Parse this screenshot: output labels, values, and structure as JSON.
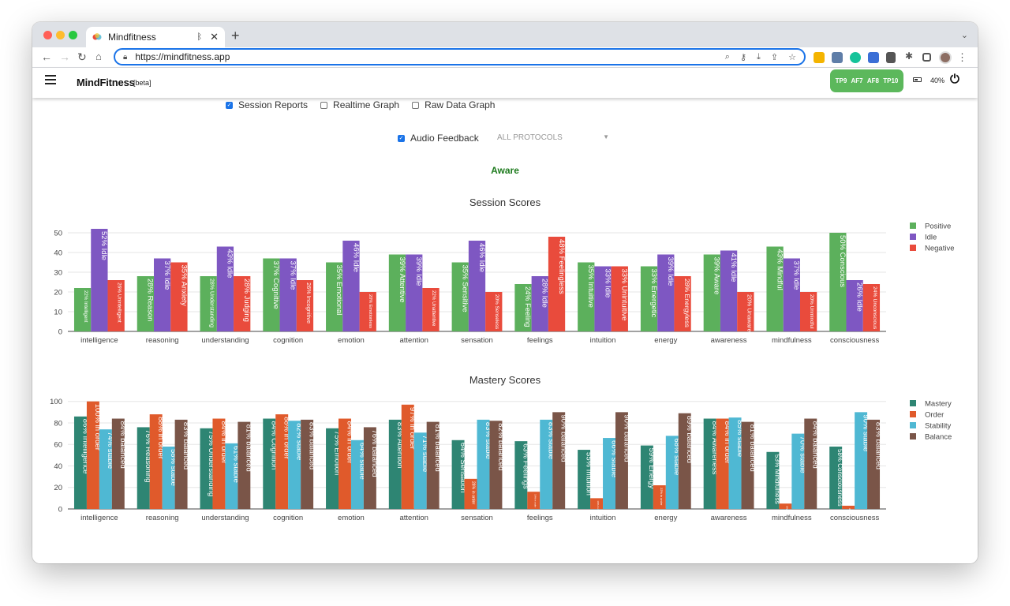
{
  "browser": {
    "tab_title": "Mindfitness",
    "url": "https://mindfitness.app"
  },
  "app": {
    "logo": "MindFitness",
    "beta": "[beta]",
    "sensors": [
      "TP9",
      "AF7",
      "AF8",
      "TP10"
    ],
    "sensor_status_color": "#5cb85c",
    "battery": "40%"
  },
  "controls": {
    "session_reports": {
      "label": "Session Reports",
      "checked": true
    },
    "realtime_graph": {
      "label": "Realtime Graph",
      "checked": false
    },
    "raw_data_graph": {
      "label": "Raw Data Graph",
      "checked": false
    },
    "audio_feedback": {
      "label": "Audio Feedback",
      "checked": true
    },
    "protocol_select": "ALL PROTOCOLS",
    "status": "Aware"
  },
  "chart_data": [
    {
      "type": "bar",
      "title": "Session Scores",
      "categories": [
        "intelligence",
        "reasoning",
        "understanding",
        "cognition",
        "emotion",
        "attention",
        "sensation",
        "feelings",
        "intuition",
        "energy",
        "awareness",
        "mindfulness",
        "consciousness"
      ],
      "ylim": [
        0,
        54
      ],
      "yticks": [
        0,
        10,
        20,
        30,
        40,
        50
      ],
      "grid": true,
      "legend_position": "right",
      "series": [
        {
          "name": "Positive",
          "color": "#5cb05c",
          "values": [
            22,
            28,
            28,
            37,
            35,
            39,
            35,
            24,
            35,
            33,
            39,
            43,
            50
          ],
          "labels": [
            "22% Intelligent",
            "28% Reason",
            "28% Understanding",
            "37% Cognitive",
            "35% Emotional",
            "39% Attentive",
            "35% Sensitive",
            "24% Feeling",
            "35% Intuitive",
            "33% Energetic",
            "39% Aware",
            "43% Mindful",
            "50% Conscious"
          ]
        },
        {
          "name": "Idle",
          "color": "#7e57c2",
          "values": [
            52,
            37,
            43,
            37,
            46,
            39,
            46,
            28,
            33,
            39,
            41,
            37,
            26
          ],
          "labels": [
            "52% Idle",
            "37% Idle",
            "43% Idle",
            "37% Idle",
            "46% Idle",
            "39% Idle",
            "46% Idle",
            "28% Idle",
            "33% Idle",
            "39% Idle",
            "41% Idle",
            "37% Idle",
            "26% Idle"
          ]
        },
        {
          "name": "Negative",
          "color": "#e94b3c",
          "values": [
            26,
            35,
            28,
            26,
            20,
            22,
            20,
            48,
            33,
            28,
            20,
            20,
            24
          ],
          "labels": [
            "26% Unintelligent",
            "35% Anxiety",
            "28% Judging",
            "26% Incognitive",
            "20% Emotionless",
            "22% Unattentive",
            "20% Senseless",
            "48% Feelingless",
            "33% Unintuitive",
            "28% Energyless",
            "20% Unaware",
            "20% Unmindful",
            "24% Unconscious"
          ]
        }
      ]
    },
    {
      "type": "bar",
      "title": "Mastery Scores",
      "categories": [
        "intelligence",
        "reasoning",
        "understanding",
        "cognition",
        "emotion",
        "attention",
        "sensation",
        "feelings",
        "intuition",
        "energy",
        "awareness",
        "mindfulness",
        "consciousness"
      ],
      "ylim": [
        0,
        102
      ],
      "yticks": [
        0,
        20,
        40,
        60,
        80,
        100
      ],
      "grid": true,
      "legend_position": "right",
      "series": [
        {
          "name": "Mastery",
          "color": "#2e8573",
          "values": [
            86,
            76,
            75,
            84,
            75,
            83,
            64,
            63,
            55,
            59,
            84,
            53,
            58
          ],
          "labels": [
            "86% Intelligence",
            "76% Reasoning",
            "75% Understanding",
            "84% Cognition",
            "75% Emotion",
            "83% Attention",
            "64% Sensation",
            "63% Feelings",
            "55% Intuition",
            "59% Energy",
            "84% Awareness",
            "53% Mindfulness",
            "58% Consciousness"
          ]
        },
        {
          "name": "Order",
          "color": "#e05a2b",
          "values": [
            100,
            88,
            84,
            88,
            84,
            97,
            28,
            16,
            10,
            22,
            84,
            5,
            3
          ],
          "labels": [
            "100% in order",
            "88% in order",
            "84% in order",
            "88% in order",
            "84% in order",
            "97% in order",
            "28% in order",
            "16% in order",
            "10% in order",
            "22% in order",
            "84% in order",
            "5% in order",
            "3% in order"
          ]
        },
        {
          "name": "Stability",
          "color": "#4fb8d3",
          "values": [
            74,
            58,
            61,
            82,
            64,
            71,
            83,
            83,
            66,
            68,
            85,
            70,
            90
          ],
          "labels": [
            "74% stable",
            "58% stable",
            "61% stable",
            "82% stable",
            "64% stable",
            "71% stable",
            "83% stable",
            "83% stable",
            "66% stable",
            "68% stable",
            "85% stable",
            "70% stable",
            "90% stable"
          ]
        },
        {
          "name": "Balance",
          "color": "#7a5548",
          "values": [
            84,
            83,
            81,
            83,
            76,
            81,
            82,
            90,
            90,
            89,
            81,
            84,
            83
          ],
          "labels": [
            "84% balanced",
            "83% balanced",
            "81% balanced",
            "83% balanced",
            "76% balanced",
            "81% balanced",
            "82% balanced",
            "90% balanced",
            "90% balanced",
            "89% balanced",
            "81% balanced",
            "84% balanced",
            "83% balanced"
          ]
        }
      ]
    }
  ]
}
